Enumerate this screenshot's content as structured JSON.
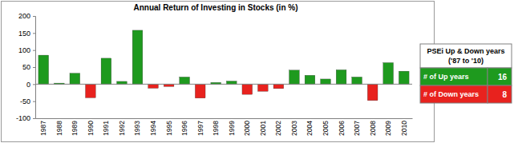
{
  "chart_data": {
    "type": "bar",
    "title": "Annual Return of Investing in Stocks (in %)",
    "categories": [
      "1987",
      "1988",
      "1989",
      "1990",
      "1991",
      "1992",
      "1993",
      "1994",
      "1995",
      "1996",
      "1997",
      "1998",
      "1999",
      "2000",
      "2001",
      "2002",
      "2003",
      "2004",
      "2005",
      "2006",
      "2007",
      "2008",
      "2009",
      "2010"
    ],
    "values": [
      85,
      3,
      32,
      -40,
      76,
      8,
      158,
      -12,
      -7,
      21,
      -41,
      5,
      9,
      -30,
      -21,
      -13,
      41,
      26,
      15,
      42,
      21,
      -48,
      63,
      38
    ],
    "colors": [
      "#1e9a1e",
      "#1e9a1e",
      "#1e9a1e",
      "#e8221e",
      "#1e9a1e",
      "#1e9a1e",
      "#1e9a1e",
      "#e8221e",
      "#e8221e",
      "#1e9a1e",
      "#e8221e",
      "#1e9a1e",
      "#1e9a1e",
      "#e8221e",
      "#e8221e",
      "#e8221e",
      "#1e9a1e",
      "#1e9a1e",
      "#1e9a1e",
      "#1e9a1e",
      "#1e9a1e",
      "#e8221e",
      "#1e9a1e",
      "#1e9a1e"
    ],
    "ylim": [
      -100,
      200
    ],
    "yticks": [
      -100,
      -50,
      0,
      50,
      100,
      150,
      200
    ],
    "grid": false
  },
  "table": {
    "title": "PSEi Up & Down years",
    "subtitle": "('87 to '10)",
    "rows": [
      [
        "# of Up years",
        16
      ],
      [
        "# of Down years",
        8
      ]
    ]
  }
}
